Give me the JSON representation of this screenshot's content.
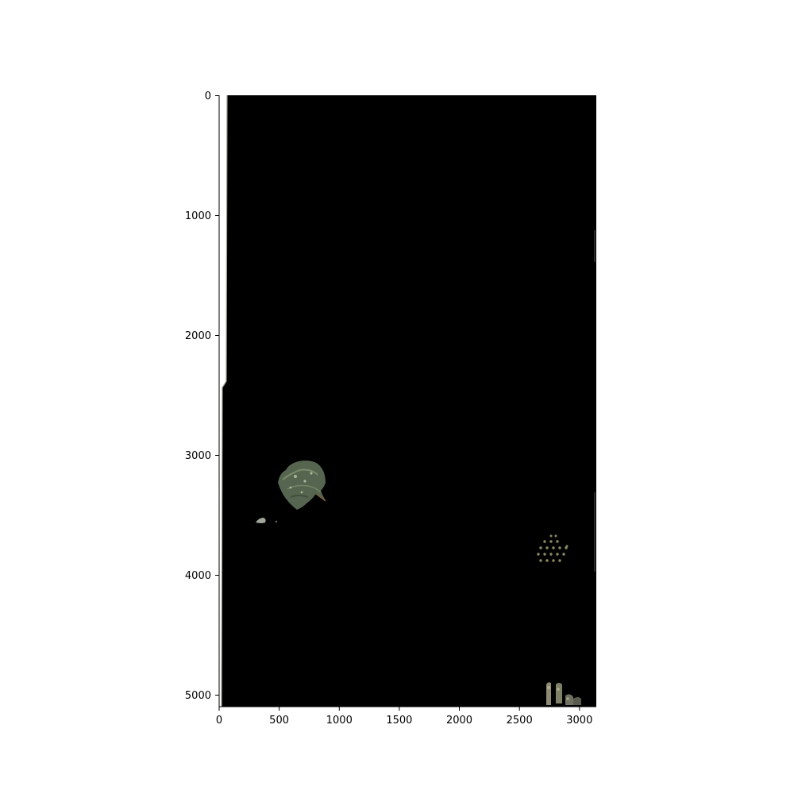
{
  "image": {
    "extent_x": [
      0,
      3140
    ],
    "extent_y": [
      0,
      5100
    ],
    "background_color": "#000000",
    "strip_color": "#ffffff",
    "strip_edge_color": "#9a9a90",
    "leaf_color": "#55654f",
    "leaf_highlight_color": "#8a9a78",
    "dot_color": "#8c8b62",
    "small_leaf_color": "#9fa69a"
  },
  "axes": {
    "x_ticks": [
      "0",
      "500",
      "1000",
      "1500",
      "2000",
      "2500",
      "3000"
    ],
    "y_ticks": [
      "0",
      "1000",
      "2000",
      "3000",
      "4000",
      "5000"
    ]
  }
}
